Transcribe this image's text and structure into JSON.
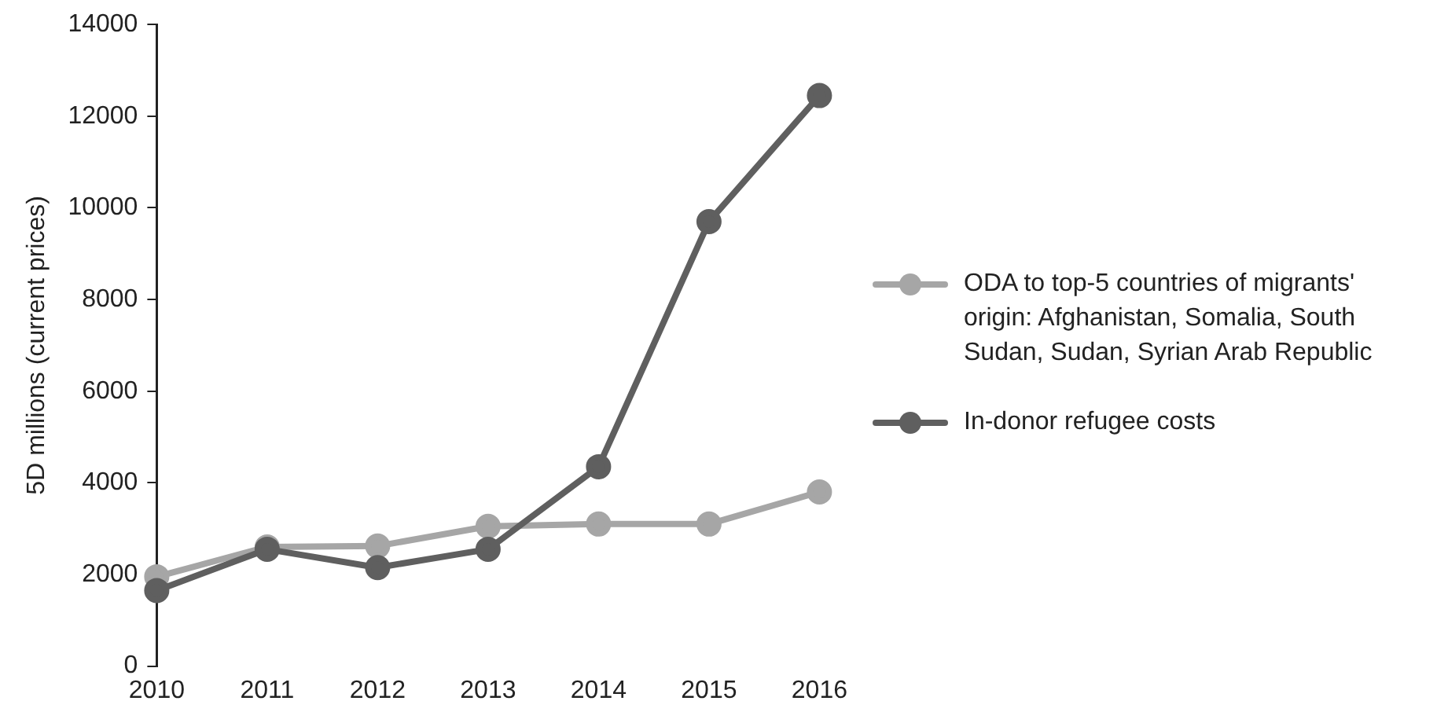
{
  "chart_data": {
    "type": "line",
    "ylabel": "5D millions (current prices)",
    "categories": [
      "2010",
      "2011",
      "2012",
      "2013",
      "2014",
      "2015",
      "2016"
    ],
    "series": [
      {
        "name": "ODA to top-5 countries of migrants' origin: Afghanistan, Somalia, South Sudan, Sudan, Syrian Arab Republic",
        "color": "#a6a6a6",
        "values": [
          1950,
          2600,
          2620,
          3050,
          3100,
          3100,
          3800
        ]
      },
      {
        "name": "In-donor refugee costs",
        "color": "#5f5f5f",
        "values": [
          1650,
          2550,
          2150,
          2550,
          4350,
          9700,
          12450
        ]
      }
    ],
    "ylim": [
      0,
      14000
    ],
    "yticks": [
      0,
      2000,
      4000,
      6000,
      8000,
      10000,
      12000,
      14000
    ],
    "grid": false,
    "legend": "right",
    "marker": "circle",
    "line_style": "solid"
  }
}
